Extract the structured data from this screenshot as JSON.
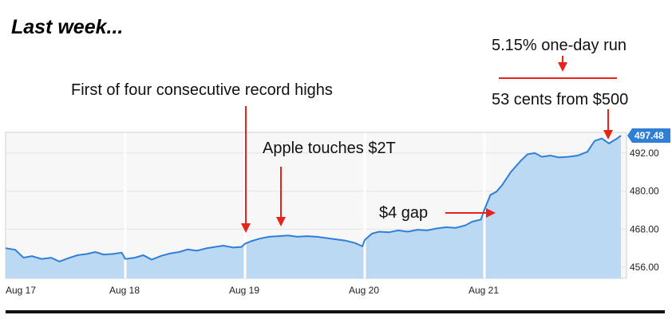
{
  "heading": "Last week...",
  "annotations": {
    "record_highs": "First of four consecutive record highs",
    "apple_2t": "Apple touches $2T",
    "gap": "$4 gap",
    "one_day_run": "5.15% one-day run",
    "cents_from_500": "53 cents from $500"
  },
  "colors": {
    "line": "#2f7fd6",
    "fill": "#bcd9f3",
    "annotation_arrow": "#e8231b",
    "last_price_badge": "#2f7fd6",
    "plot_bg": "#f7f7f7"
  },
  "chart_data": {
    "type": "area",
    "title": "",
    "xlabel": "",
    "ylabel": "",
    "x_ticks": [
      "Aug 17",
      "Aug 18",
      "Aug 19",
      "Aug 20",
      "Aug 21"
    ],
    "y_ticks": [
      456.0,
      468.0,
      480.0,
      492.0
    ],
    "ylim": [
      452.5,
      498.5
    ],
    "last_value_label": "497.48",
    "series": [
      {
        "points": [
          [
            0,
            462.0
          ],
          [
            0.08,
            461.5
          ],
          [
            0.15,
            459.0
          ],
          [
            0.22,
            459.5
          ],
          [
            0.3,
            458.6
          ],
          [
            0.38,
            459.0
          ],
          [
            0.45,
            457.8
          ],
          [
            0.52,
            458.8
          ],
          [
            0.6,
            459.8
          ],
          [
            0.68,
            460.2
          ],
          [
            0.75,
            460.8
          ],
          [
            0.82,
            460.0
          ],
          [
            0.9,
            460.2
          ],
          [
            0.97,
            460.6
          ],
          [
            1.0,
            458.6
          ],
          [
            1.08,
            459.0
          ],
          [
            1.15,
            459.8
          ],
          [
            1.22,
            458.4
          ],
          [
            1.3,
            459.6
          ],
          [
            1.38,
            460.4
          ],
          [
            1.45,
            460.8
          ],
          [
            1.52,
            461.6
          ],
          [
            1.6,
            461.2
          ],
          [
            1.68,
            462.0
          ],
          [
            1.75,
            462.4
          ],
          [
            1.82,
            462.8
          ],
          [
            1.9,
            462.2
          ],
          [
            1.97,
            462.4
          ],
          [
            2.0,
            463.4
          ],
          [
            2.05,
            464.2
          ],
          [
            2.12,
            465.0
          ],
          [
            2.2,
            465.6
          ],
          [
            2.28,
            465.8
          ],
          [
            2.36,
            466.0
          ],
          [
            2.44,
            465.6
          ],
          [
            2.52,
            465.8
          ],
          [
            2.6,
            465.6
          ],
          [
            2.68,
            465.2
          ],
          [
            2.76,
            464.8
          ],
          [
            2.84,
            464.4
          ],
          [
            2.92,
            463.6
          ],
          [
            2.98,
            462.6
          ],
          [
            3.0,
            464.6
          ],
          [
            3.06,
            466.6
          ],
          [
            3.12,
            467.2
          ],
          [
            3.2,
            467.0
          ],
          [
            3.28,
            467.6
          ],
          [
            3.36,
            467.2
          ],
          [
            3.44,
            467.8
          ],
          [
            3.52,
            467.6
          ],
          [
            3.6,
            468.2
          ],
          [
            3.68,
            468.6
          ],
          [
            3.76,
            468.4
          ],
          [
            3.84,
            469.2
          ],
          [
            3.9,
            470.4
          ],
          [
            3.97,
            471.0
          ],
          [
            4.0,
            474.2
          ],
          [
            4.05,
            478.8
          ],
          [
            4.1,
            479.8
          ],
          [
            4.15,
            482.0
          ],
          [
            4.22,
            486.0
          ],
          [
            4.3,
            489.4
          ],
          [
            4.36,
            491.6
          ],
          [
            4.42,
            492.0
          ],
          [
            4.48,
            490.8
          ],
          [
            4.55,
            491.2
          ],
          [
            4.62,
            490.6
          ],
          [
            4.7,
            490.8
          ],
          [
            4.78,
            491.2
          ],
          [
            4.86,
            492.4
          ],
          [
            4.92,
            495.8
          ],
          [
            4.98,
            496.6
          ],
          [
            5.04,
            495.0
          ],
          [
            5.1,
            496.4
          ],
          [
            5.14,
            497.48
          ]
        ]
      }
    ],
    "grid": true,
    "day_boundaries": [
      1,
      2,
      3,
      4
    ]
  }
}
